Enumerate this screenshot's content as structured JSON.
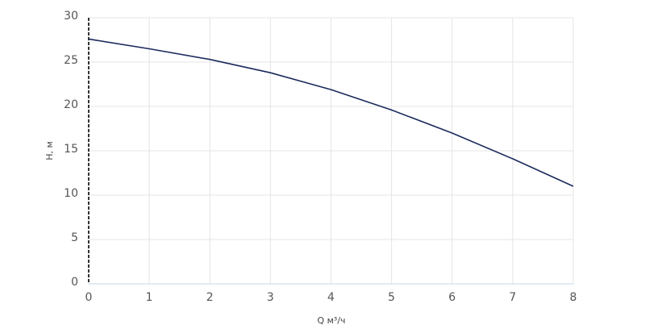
{
  "chart_data": {
    "type": "line",
    "x_label": "Q м³/ч",
    "y_label": "H, м",
    "x": [
      0,
      1,
      2,
      3,
      4,
      5,
      6,
      7,
      8
    ],
    "series": [
      {
        "name": "H",
        "color": "#1b2a5c",
        "values": [
          27.6,
          26.5,
          25.3,
          23.8,
          21.9,
          19.6,
          17.0,
          14.1,
          11.0
        ]
      }
    ],
    "xlim": [
      0,
      8
    ],
    "ylim": [
      0,
      30
    ],
    "xticks": [
      0,
      1,
      2,
      3,
      4,
      5,
      6,
      7,
      8
    ],
    "yticks": [
      0,
      5,
      10,
      15,
      20,
      25,
      30
    ],
    "grid": true
  }
}
